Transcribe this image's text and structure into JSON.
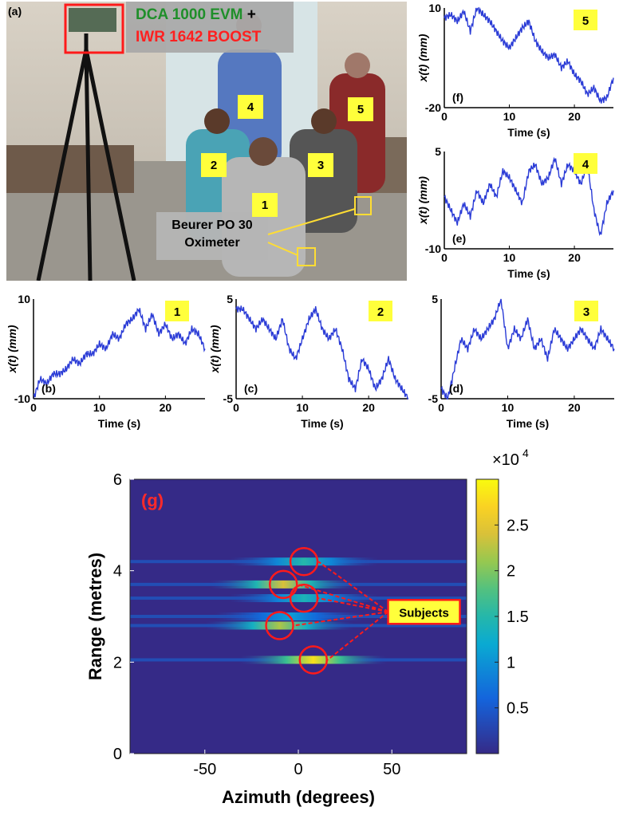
{
  "photo": {
    "panel_label": "(a)",
    "evm_label": "DCA 1000 EVM",
    "plus": "+",
    "boost_label": "IWR 1642 BOOST",
    "oximeter_label_1": "Beurer PO 30",
    "oximeter_label_2": "Oximeter",
    "subject_tags": [
      "1",
      "2",
      "3",
      "4",
      "5"
    ],
    "colors": {
      "evm": "#1f8f2a",
      "boost": "#ff2020",
      "tag": "#ffff3b",
      "box": "#ff1a1a"
    }
  },
  "chart_data": [
    {
      "id": "f",
      "type": "line",
      "panel_label": "(f)",
      "subject": "5",
      "xlabel": "Time (s)",
      "ylabel": "x(t) (mm)",
      "xlim": [
        0,
        26
      ],
      "ylim": [
        -20,
        10
      ],
      "xticks": [
        0,
        10,
        20
      ],
      "yticks": [
        10,
        -20
      ],
      "x": [
        0,
        1,
        2,
        3,
        4,
        5,
        6,
        7,
        8,
        9,
        10,
        11,
        12,
        13,
        14,
        15,
        16,
        17,
        18,
        19,
        20,
        21,
        22,
        23,
        24,
        25,
        26
      ],
      "y": [
        7,
        8,
        6,
        9,
        3,
        10,
        8,
        6,
        3,
        0,
        -2,
        1,
        4,
        6,
        0,
        -3,
        -5,
        -4,
        -8,
        -6,
        -10,
        -12,
        -16,
        -14,
        -18,
        -17,
        -11
      ]
    },
    {
      "id": "e",
      "type": "line",
      "panel_label": "(e)",
      "subject": "4",
      "xlabel": "Time (s)",
      "ylabel": "x(t) (mm)",
      "xlim": [
        0,
        26
      ],
      "ylim": [
        -10,
        5
      ],
      "xticks": [
        0,
        10,
        20
      ],
      "yticks": [
        5,
        -10
      ],
      "x": [
        0,
        1,
        2,
        3,
        4,
        5,
        6,
        7,
        8,
        9,
        10,
        11,
        12,
        13,
        14,
        15,
        16,
        17,
        18,
        19,
        20,
        21,
        22,
        23,
        24,
        25,
        26
      ],
      "y": [
        -2,
        -4,
        -6,
        -3,
        -5,
        -1,
        -3,
        0,
        -2,
        2,
        1,
        -1,
        -3,
        2,
        3,
        0,
        1,
        4,
        0,
        3,
        2,
        0,
        3,
        -4,
        -8,
        -3,
        -1
      ]
    },
    {
      "id": "b",
      "type": "line",
      "panel_label": "(b)",
      "subject": "1",
      "xlabel": "Time (s)",
      "ylabel": "x(t) (mm)",
      "xlim": [
        0,
        26
      ],
      "ylim": [
        -10,
        10
      ],
      "xticks": [
        0,
        10,
        20
      ],
      "yticks": [
        10,
        -10
      ],
      "x": [
        0,
        1,
        2,
        3,
        4,
        5,
        6,
        7,
        8,
        9,
        10,
        11,
        12,
        13,
        14,
        15,
        16,
        17,
        18,
        19,
        20,
        21,
        22,
        23,
        24,
        25,
        26
      ],
      "y": [
        -10,
        -6,
        -7,
        -5,
        -5,
        -4,
        -2,
        -3,
        -1,
        -1,
        1,
        0,
        3,
        2,
        5,
        6,
        8,
        4,
        7,
        3,
        5,
        2,
        3,
        1,
        4,
        3,
        0
      ]
    },
    {
      "id": "c",
      "type": "line",
      "panel_label": "(c)",
      "subject": "2",
      "xlabel": "Time (s)",
      "ylabel": "x(t) (mm)",
      "xlim": [
        0,
        26
      ],
      "ylim": [
        -5,
        5
      ],
      "xticks": [
        0,
        10,
        20
      ],
      "yticks": [
        5,
        -5
      ],
      "x": [
        0,
        1,
        2,
        3,
        4,
        5,
        6,
        7,
        8,
        9,
        10,
        11,
        12,
        13,
        14,
        15,
        16,
        17,
        18,
        19,
        20,
        21,
        22,
        23,
        24,
        25,
        26
      ],
      "y": [
        4,
        4,
        3,
        2,
        3,
        2,
        1,
        3,
        0,
        -1,
        1,
        3,
        4,
        2,
        1,
        2,
        0,
        -3,
        -4,
        -1,
        -2,
        -4,
        -3,
        -1,
        -3,
        -4,
        -5
      ]
    },
    {
      "id": "d",
      "type": "line",
      "panel_label": "(d)",
      "subject": "3",
      "xlabel": "Time (s)",
      "ylabel": "",
      "xlim": [
        0,
        26
      ],
      "ylim": [
        -5,
        5
      ],
      "xticks": [
        0,
        10,
        20
      ],
      "yticks": [
        5,
        -5
      ],
      "x": [
        0,
        1,
        2,
        3,
        4,
        5,
        6,
        7,
        8,
        9,
        10,
        11,
        12,
        13,
        14,
        15,
        16,
        17,
        18,
        19,
        20,
        21,
        22,
        23,
        24,
        25,
        26
      ],
      "y": [
        -4,
        -5,
        -2,
        1,
        0,
        2,
        1,
        2,
        3,
        5,
        0,
        2,
        1,
        3,
        0,
        1,
        -1,
        2,
        1,
        0,
        1,
        2,
        1,
        0,
        2,
        1,
        0
      ]
    },
    {
      "id": "g",
      "type": "heatmap",
      "panel_label": "(g)",
      "xlabel": "Azimuth (degrees)",
      "ylabel": "Range (metres)",
      "xlim": [
        -90,
        90
      ],
      "ylim": [
        0,
        6
      ],
      "xticks": [
        -50,
        0,
        50
      ],
      "yticks": [
        0,
        2,
        4,
        6
      ],
      "colorbar": {
        "ticks": [
          0.5,
          1,
          1.5,
          2,
          2.5
        ],
        "range": [
          0,
          3
        ],
        "multiplier": "×10",
        "exponent": "4"
      },
      "bands": [
        {
          "range": 4.2,
          "azimuth": 3,
          "intensity": 1.5
        },
        {
          "range": 3.7,
          "azimuth": -8,
          "intensity": 2.4
        },
        {
          "range": 3.4,
          "azimuth": 3,
          "intensity": 1.4
        },
        {
          "range": 3.0,
          "azimuth": -5,
          "intensity": 1.1
        },
        {
          "range": 2.8,
          "azimuth": -10,
          "intensity": 2.2
        },
        {
          "range": 2.05,
          "azimuth": 8,
          "intensity": 2.8
        }
      ],
      "annotation": "Subjects",
      "annotation_color": "#ff1a1a"
    }
  ]
}
